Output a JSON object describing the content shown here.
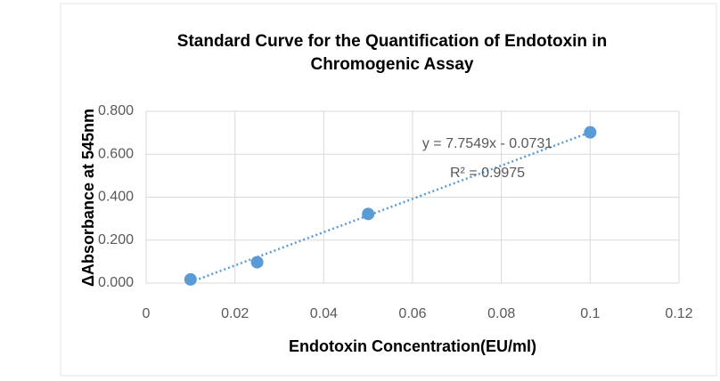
{
  "chart_data": {
    "type": "scatter",
    "title": [
      "Standard Curve for the Quantification of Endotoxin in",
      "Chromogenic Assay"
    ],
    "x_label": "Endotoxin Concentration(EU/ml)",
    "y_label": "ΔAbsorbance at 545nm",
    "x": [
      0.01,
      0.025,
      0.05,
      0.1
    ],
    "series": [
      {
        "name": "ΔAbsorbance",
        "color": "#5b9bd5",
        "values": [
          0.017,
          0.097,
          0.322,
          0.702
        ]
      }
    ],
    "trendline": {
      "slope": 7.7549,
      "intercept": -0.0731,
      "color": "#5b9bd5",
      "label": "y = 7.7549x - 0.0731",
      "r2": 0.9975,
      "r2_label": "R² = 0.9975"
    },
    "xlim": [
      0,
      0.12
    ],
    "xticks": [
      0,
      0.02,
      0.04,
      0.06,
      0.08,
      0.1,
      0.12
    ],
    "ylim": [
      0,
      0.8
    ],
    "yticks": [
      {
        "value": 0,
        "label": "0.000"
      },
      {
        "value": 0.2,
        "label": "0.200"
      },
      {
        "value": 0.4,
        "label": "0.400"
      },
      {
        "value": 0.6,
        "label": "0.600"
      },
      {
        "value": 0.8,
        "label": "0.800"
      }
    ],
    "grid": true
  }
}
